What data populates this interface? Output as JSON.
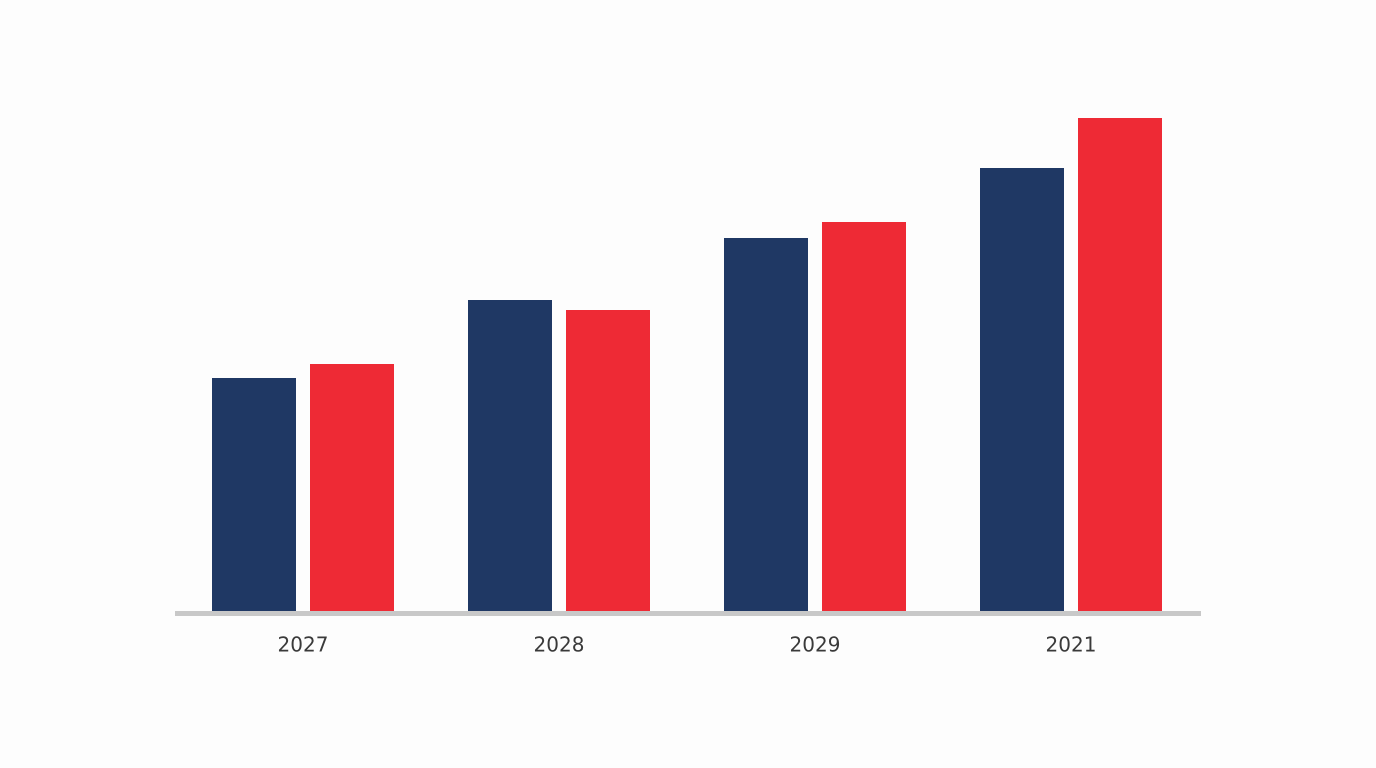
{
  "chart_data": {
    "type": "bar",
    "categories": [
      "2027",
      "2028",
      "2029",
      "2021"
    ],
    "series": [
      {
        "color": "#1f3864",
        "values": [
          233,
          311,
          373,
          443
        ]
      },
      {
        "color": "#ee2a35",
        "values": [
          247,
          301,
          389,
          493
        ]
      }
    ],
    "ylim": [
      0,
      500
    ]
  }
}
